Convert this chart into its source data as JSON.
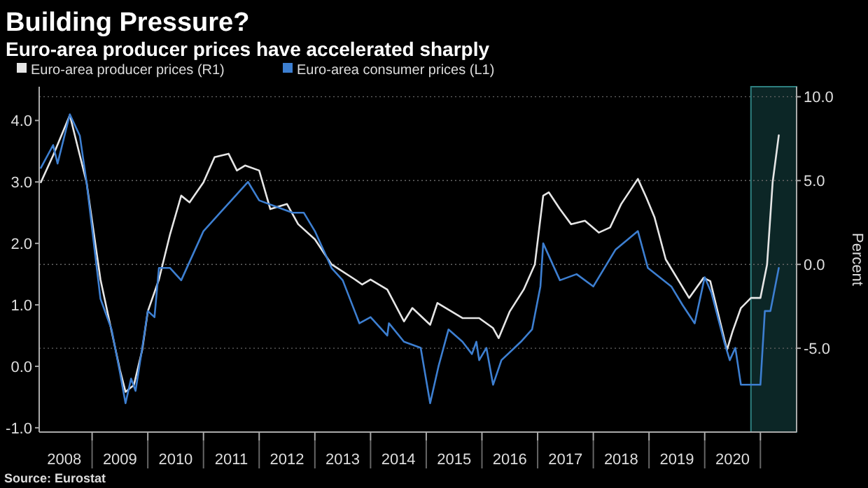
{
  "chart_data": {
    "type": "line",
    "title": "Building Pressure?",
    "subtitle": "Euro-area producer prices have accelerated sharply",
    "y2label": "Percent",
    "annotations": [
      "Source: Eurostat"
    ],
    "legend": "top left",
    "grid": "y",
    "line_style": "solid",
    "marker": "none",
    "xlim": [
      2008.05,
      2021.65
    ],
    "xticks": [
      {
        "value": 2008.5,
        "label": "2008"
      },
      {
        "value": 2009,
        "label": null
      },
      {
        "value": 2009.5,
        "label": "2009"
      },
      {
        "value": 2010,
        "label": null
      },
      {
        "value": 2010.5,
        "label": "2010"
      },
      {
        "value": 2011,
        "label": null
      },
      {
        "value": 2011.5,
        "label": "2011"
      },
      {
        "value": 2012,
        "label": null
      },
      {
        "value": 2012.5,
        "label": "2012"
      },
      {
        "value": 2013,
        "label": null
      },
      {
        "value": 2013.5,
        "label": "2013"
      },
      {
        "value": 2014,
        "label": null
      },
      {
        "value": 2014.5,
        "label": "2014"
      },
      {
        "value": 2015,
        "label": null
      },
      {
        "value": 2015.5,
        "label": "2015"
      },
      {
        "value": 2016,
        "label": null
      },
      {
        "value": 2016.5,
        "label": "2016"
      },
      {
        "value": 2017,
        "label": null
      },
      {
        "value": 2017.5,
        "label": "2017"
      },
      {
        "value": 2018,
        "label": null
      },
      {
        "value": 2018.5,
        "label": "2018"
      },
      {
        "value": 2019,
        "label": null
      },
      {
        "value": 2019.5,
        "label": "2019"
      },
      {
        "value": 2020,
        "label": null
      },
      {
        "value": 2020.5,
        "label": "2020"
      },
      {
        "value": 2021,
        "label": null
      }
    ],
    "ylim": [
      -1.07,
      4.55
    ],
    "yticks": [
      {
        "value": -1,
        "label": "-1.0"
      },
      {
        "value": 0,
        "label": "0.0"
      },
      {
        "value": 1,
        "label": "1.0"
      },
      {
        "value": 2,
        "label": "2.0"
      },
      {
        "value": 3,
        "label": "3.0"
      },
      {
        "value": 4,
        "label": "4.0"
      }
    ],
    "y2lim": [
      -10,
      10.6
    ],
    "y2ticks": [
      {
        "value": -5,
        "label": "-5.0"
      },
      {
        "value": 0,
        "label": "0.0"
      },
      {
        "value": 5,
        "label": "5.0"
      },
      {
        "value": 10,
        "label": "10.0"
      }
    ],
    "bands": [
      {
        "axis": "x",
        "from": 2020.83,
        "to": 2021.65,
        "color": "#0c2626"
      }
    ],
    "series": [
      {
        "name": "Euro-area producer prices (R1)",
        "color": "#e6e6e6",
        "axis": "y2",
        "x": [
          2008.08,
          2008.3,
          2008.6,
          2008.9,
          2009.15,
          2009.5,
          2009.6,
          2009.75,
          2009.9,
          2010.0,
          2010.2,
          2010.4,
          2010.6,
          2010.75,
          2011.0,
          2011.2,
          2011.45,
          2011.6,
          2011.75,
          2012.0,
          2012.2,
          2012.5,
          2012.7,
          2013.0,
          2013.3,
          2013.72,
          2013.85,
          2014.0,
          2014.3,
          2014.6,
          2014.75,
          2015.07,
          2015.2,
          2015.65,
          2015.95,
          2016.2,
          2016.3,
          2016.5,
          2016.75,
          2016.95,
          2017.1,
          2017.2,
          2017.4,
          2017.6,
          2017.85,
          2018.1,
          2018.3,
          2018.5,
          2018.8,
          2018.95,
          2019.1,
          2019.3,
          2019.72,
          2019.98,
          2020.1,
          2020.4,
          2020.5,
          2020.65,
          2020.83,
          2021.0,
          2021.12,
          2021.22,
          2021.33
        ],
        "values": [
          4.9,
          6.5,
          8.9,
          4.9,
          -0.9,
          -6.3,
          -7.6,
          -7.2,
          -5.1,
          -2.8,
          -0.9,
          1.8,
          4.1,
          3.7,
          4.9,
          6.4,
          6.6,
          5.6,
          5.9,
          5.6,
          3.3,
          3.6,
          2.4,
          1.5,
          0.0,
          -0.9,
          -1.2,
          -0.9,
          -1.5,
          -3.4,
          -2.6,
          -3.6,
          -2.3,
          -3.2,
          -3.2,
          -3.8,
          -4.4,
          -2.8,
          -1.5,
          0.0,
          4.1,
          4.3,
          3.3,
          2.4,
          2.6,
          1.9,
          2.2,
          3.6,
          5.1,
          4.0,
          2.8,
          0.3,
          -2.0,
          -0.8,
          -1.0,
          -5.1,
          -4.0,
          -2.6,
          -2.0,
          -2.0,
          0.0,
          4.9,
          7.7
        ]
      },
      {
        "name": "Euro-area consumer prices (L1)",
        "color": "#3d7fd1",
        "x": [
          2008.08,
          2008.3,
          2008.38,
          2008.6,
          2008.78,
          2008.9,
          2009.15,
          2009.35,
          2009.5,
          2009.6,
          2009.7,
          2009.78,
          2009.9,
          2010.0,
          2010.12,
          2010.2,
          2010.4,
          2010.6,
          2010.9,
          2011.0,
          2011.3,
          2011.5,
          2011.8,
          2012.0,
          2012.3,
          2012.6,
          2012.8,
          2013.0,
          2013.3,
          2013.5,
          2013.8,
          2014.0,
          2014.3,
          2014.33,
          2014.6,
          2014.9,
          2015.07,
          2015.22,
          2015.4,
          2015.65,
          2015.82,
          2015.9,
          2015.95,
          2016.08,
          2016.2,
          2016.35,
          2016.7,
          2016.9,
          2017.05,
          2017.1,
          2017.4,
          2017.7,
          2018.0,
          2018.4,
          2018.8,
          2018.98,
          2019.4,
          2019.6,
          2019.82,
          2020.0,
          2020.12,
          2020.35,
          2020.45,
          2020.55,
          2020.65,
          2021.0,
          2021.08,
          2021.18,
          2021.33
        ],
        "values": [
          3.23,
          3.6,
          3.3,
          4.1,
          3.75,
          3.0,
          1.1,
          0.6,
          -0.1,
          -0.6,
          -0.2,
          -0.4,
          0.3,
          0.9,
          0.8,
          1.6,
          1.6,
          1.4,
          2.0,
          2.2,
          2.5,
          2.7,
          3.0,
          2.7,
          2.6,
          2.5,
          2.5,
          2.2,
          1.6,
          1.4,
          0.7,
          0.8,
          0.5,
          0.7,
          0.4,
          0.3,
          -0.6,
          0.0,
          0.6,
          0.4,
          0.2,
          0.4,
          0.1,
          0.3,
          -0.3,
          0.1,
          0.4,
          0.6,
          1.3,
          2.0,
          1.4,
          1.5,
          1.3,
          1.9,
          2.2,
          1.6,
          1.3,
          1.0,
          0.7,
          1.45,
          1.2,
          0.4,
          0.1,
          0.3,
          -0.3,
          -0.3,
          0.9,
          0.9,
          1.6
        ]
      }
    ]
  }
}
